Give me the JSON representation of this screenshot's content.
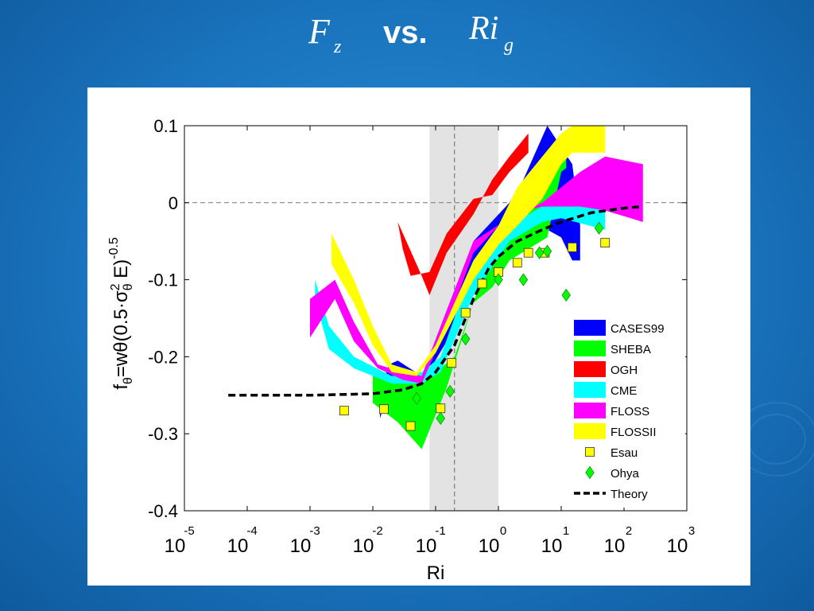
{
  "slide": {
    "title_left_main": "F",
    "title_left_sub": "z",
    "title_middle": "vs.",
    "title_right_main": "Ri",
    "title_right_sub": "g",
    "background_color": "#1a74be",
    "title_color": "#ffffff"
  },
  "chart_data": {
    "type": "area",
    "xlabel": "Ri",
    "ylabel": "f",
    "ylabel_sub": "θ",
    "ylabel_eq": "=wθ(0.5·σ",
    "ylabel_sub2": "θ",
    "ylabel_sup2": "2",
    "ylabel_tail": " E)",
    "ylabel_sup": "-0.5",
    "x_scale": "log",
    "xlim": [
      1e-05,
      1000
    ],
    "ylim": [
      -0.4,
      0.1
    ],
    "x_ticks": [
      {
        "value": 1e-05,
        "base": "10",
        "exp": "-5"
      },
      {
        "value": 0.0001,
        "base": "10",
        "exp": "-4"
      },
      {
        "value": 0.001,
        "base": "10",
        "exp": "-3"
      },
      {
        "value": 0.01,
        "base": "10",
        "exp": "-2"
      },
      {
        "value": 0.1,
        "base": "10",
        "exp": "-1"
      },
      {
        "value": 1,
        "base": "10",
        "exp": "0"
      },
      {
        "value": 10,
        "base": "10",
        "exp": "1"
      },
      {
        "value": 100,
        "base": "10",
        "exp": "2"
      },
      {
        "value": 1000,
        "base": "10",
        "exp": "3"
      }
    ],
    "y_ticks": [
      {
        "value": 0.1,
        "label": "0.1"
      },
      {
        "value": 0,
        "label": "0"
      },
      {
        "value": -0.1,
        "label": "-0.1"
      },
      {
        "value": -0.2,
        "label": "-0.2"
      },
      {
        "value": -0.3,
        "label": "-0.3"
      },
      {
        "value": -0.4,
        "label": "-0.4"
      }
    ],
    "shaded_band_x": [
      0.08,
      1.0
    ],
    "critical_ri_line_x": 0.2,
    "zero_line_y": 0,
    "grid": false,
    "legend_position": "lower-right",
    "legend": [
      {
        "name": "CASES99",
        "marker": "patch",
        "color": "#0000ff"
      },
      {
        "name": "SHEBA",
        "marker": "patch",
        "color": "#00ff00"
      },
      {
        "name": "OGH",
        "marker": "patch",
        "color": "#ff0000"
      },
      {
        "name": "CME",
        "marker": "patch",
        "color": "#00ffff"
      },
      {
        "name": "FLOSS",
        "marker": "patch",
        "color": "#ff00ff"
      },
      {
        "name": "FLOSSII",
        "marker": "patch",
        "color": "#ffff00"
      },
      {
        "name": "Esau",
        "marker": "square",
        "color": "#ffff00"
      },
      {
        "name": "Ohya",
        "marker": "diamond",
        "color": "#00ff00"
      },
      {
        "name": "Theory",
        "marker": "dashed-line",
        "color": "#000000"
      }
    ],
    "bands": [
      {
        "name": "CASES99",
        "color": "#0000ff",
        "upper": [
          [
            0.013,
            -0.245
          ],
          [
            0.018,
            -0.21
          ],
          [
            0.025,
            -0.205
          ],
          [
            0.06,
            -0.225
          ],
          [
            0.15,
            -0.14
          ],
          [
            0.4,
            -0.05
          ],
          [
            1.5,
            0.0
          ],
          [
            2.5,
            0.03
          ],
          [
            6,
            0.1
          ],
          [
            15,
            0.05
          ],
          [
            20,
            -0.03
          ]
        ],
        "lower": [
          [
            20,
            -0.075
          ],
          [
            15,
            -0.075
          ],
          [
            10,
            -0.045
          ],
          [
            6,
            -0.035
          ],
          [
            3,
            -0.03
          ],
          [
            1.5,
            -0.035
          ],
          [
            0.4,
            -0.12
          ],
          [
            0.15,
            -0.18
          ],
          [
            0.06,
            -0.235
          ],
          [
            0.025,
            -0.225
          ],
          [
            0.018,
            -0.245
          ],
          [
            0.013,
            -0.28
          ]
        ]
      },
      {
        "name": "SHEBA",
        "color": "#00ff00",
        "upper": [
          [
            0.01,
            -0.22
          ],
          [
            0.03,
            -0.23
          ],
          [
            0.06,
            -0.235
          ],
          [
            0.2,
            -0.2
          ],
          [
            0.4,
            -0.13
          ],
          [
            0.6,
            -0.085
          ],
          [
            1,
            -0.05
          ],
          [
            2,
            -0.025
          ],
          [
            5,
            0.01
          ],
          [
            10,
            0.07
          ],
          [
            12,
            0.09
          ]
        ],
        "lower": [
          [
            12,
            0.045
          ],
          [
            10,
            0.04
          ],
          [
            6,
            -0.045
          ],
          [
            3,
            -0.06
          ],
          [
            1.5,
            -0.075
          ],
          [
            0.8,
            -0.11
          ],
          [
            0.4,
            -0.13
          ],
          [
            0.15,
            -0.24
          ],
          [
            0.06,
            -0.32
          ],
          [
            0.025,
            -0.285
          ],
          [
            0.01,
            -0.26
          ]
        ]
      },
      {
        "name": "OGH",
        "color": "#ff0000",
        "upper": [
          [
            0.06,
            -0.095
          ],
          [
            0.08,
            -0.12
          ],
          [
            0.15,
            -0.065
          ],
          [
            0.4,
            -0.015
          ],
          [
            0.8,
            0.03
          ],
          [
            1.5,
            0.06
          ],
          [
            3,
            0.09
          ]
        ],
        "lower": [
          [
            3,
            0.065
          ],
          [
            1.5,
            0.04
          ],
          [
            0.8,
            0.01
          ],
          [
            0.4,
            0.005
          ],
          [
            0.15,
            -0.04
          ],
          [
            0.08,
            -0.09
          ],
          [
            0.04,
            -0.095
          ],
          [
            0.03,
            -0.06
          ],
          [
            0.025,
            -0.025
          ]
        ]
      },
      {
        "name": "CME",
        "color": "#00ffff",
        "upper": [
          [
            0.0012,
            -0.1
          ],
          [
            0.002,
            -0.16
          ],
          [
            0.005,
            -0.2
          ],
          [
            0.02,
            -0.225
          ],
          [
            0.06,
            -0.22
          ],
          [
            0.12,
            -0.2
          ],
          [
            0.4,
            -0.08
          ],
          [
            1.5,
            -0.03
          ],
          [
            5,
            -0.005
          ],
          [
            10,
            0.0
          ],
          [
            50,
            0.01
          ]
        ],
        "lower": [
          [
            50,
            -0.035
          ],
          [
            10,
            -0.02
          ],
          [
            5,
            -0.025
          ],
          [
            1.5,
            -0.05
          ],
          [
            0.4,
            -0.12
          ],
          [
            0.12,
            -0.22
          ],
          [
            0.06,
            -0.235
          ],
          [
            0.02,
            -0.235
          ],
          [
            0.005,
            -0.215
          ],
          [
            0.002,
            -0.19
          ],
          [
            0.0012,
            -0.125
          ]
        ]
      },
      {
        "name": "FLOSS",
        "color": "#ff00ff",
        "upper": [
          [
            0.001,
            -0.125
          ],
          [
            0.0025,
            -0.1
          ],
          [
            0.005,
            -0.155
          ],
          [
            0.012,
            -0.21
          ],
          [
            0.03,
            -0.22
          ],
          [
            0.06,
            -0.225
          ],
          [
            0.15,
            -0.14
          ],
          [
            0.4,
            -0.05
          ],
          [
            1.5,
            -0.02
          ],
          [
            5,
            0.0
          ],
          [
            20,
            0.04
          ],
          [
            50,
            0.06
          ],
          [
            200,
            0.05
          ]
        ],
        "lower": [
          [
            200,
            -0.025
          ],
          [
            50,
            -0.01
          ],
          [
            20,
            -0.005
          ],
          [
            5,
            -0.005
          ],
          [
            1.5,
            -0.015
          ],
          [
            0.4,
            -0.065
          ],
          [
            0.15,
            -0.16
          ],
          [
            0.06,
            -0.235
          ],
          [
            0.03,
            -0.23
          ],
          [
            0.012,
            -0.215
          ],
          [
            0.005,
            -0.18
          ],
          [
            0.0025,
            -0.125
          ],
          [
            0.001,
            -0.175
          ]
        ]
      },
      {
        "name": "FLOSSII",
        "color": "#ffff00",
        "upper": [
          [
            0.0022,
            -0.04
          ],
          [
            0.005,
            -0.1
          ],
          [
            0.01,
            -0.16
          ],
          [
            0.02,
            -0.21
          ],
          [
            0.05,
            -0.22
          ],
          [
            0.1,
            -0.185
          ],
          [
            0.4,
            -0.075
          ],
          [
            1,
            -0.03
          ],
          [
            2,
            0.02
          ],
          [
            5,
            0.06
          ],
          [
            10,
            0.09
          ],
          [
            15,
            0.1
          ],
          [
            50,
            0.1
          ]
        ],
        "lower": [
          [
            50,
            0.065
          ],
          [
            15,
            0.065
          ],
          [
            10,
            0.05
          ],
          [
            5,
            0.005
          ],
          [
            2,
            -0.03
          ],
          [
            1,
            -0.055
          ],
          [
            0.4,
            -0.1
          ],
          [
            0.1,
            -0.195
          ],
          [
            0.05,
            -0.225
          ],
          [
            0.02,
            -0.22
          ],
          [
            0.01,
            -0.185
          ],
          [
            0.005,
            -0.13
          ],
          [
            0.0022,
            -0.08
          ]
        ]
      }
    ],
    "scatter": [
      {
        "name": "Esau",
        "marker": "square",
        "color": "#ffff00",
        "points": [
          [
            0.0035,
            -0.27
          ],
          [
            0.015,
            -0.268
          ],
          [
            0.04,
            -0.29
          ],
          [
            0.12,
            -0.267
          ],
          [
            0.18,
            -0.208
          ],
          [
            0.3,
            -0.143
          ],
          [
            0.55,
            -0.105
          ],
          [
            1.0,
            -0.09
          ],
          [
            2.0,
            -0.078
          ],
          [
            3.0,
            -0.065
          ],
          [
            5.5,
            -0.065
          ],
          [
            15,
            -0.058
          ],
          [
            50,
            -0.052
          ]
        ]
      },
      {
        "name": "Ohya",
        "marker": "diamond",
        "color": "#00ff00",
        "points": [
          [
            0.05,
            -0.254
          ],
          [
            0.12,
            -0.28
          ],
          [
            0.17,
            -0.245
          ],
          [
            0.3,
            -0.177
          ],
          [
            1.0,
            -0.1
          ],
          [
            2.5,
            -0.1
          ],
          [
            4.5,
            -0.065
          ],
          [
            6,
            -0.063
          ],
          [
            12,
            -0.12
          ],
          [
            40,
            -0.033
          ]
        ]
      }
    ],
    "theory_curve": [
      [
        5e-05,
        -0.25
      ],
      [
        0.001,
        -0.25
      ],
      [
        0.01,
        -0.248
      ],
      [
        0.03,
        -0.243
      ],
      [
        0.06,
        -0.235
      ],
      [
        0.1,
        -0.22
      ],
      [
        0.2,
        -0.185
      ],
      [
        0.4,
        -0.125
      ],
      [
        0.7,
        -0.085
      ],
      [
        1.0,
        -0.07
      ],
      [
        2,
        -0.05
      ],
      [
        5,
        -0.035
      ],
      [
        10,
        -0.025
      ],
      [
        30,
        -0.013
      ],
      [
        100,
        -0.007
      ],
      [
        200,
        -0.005
      ]
    ]
  }
}
